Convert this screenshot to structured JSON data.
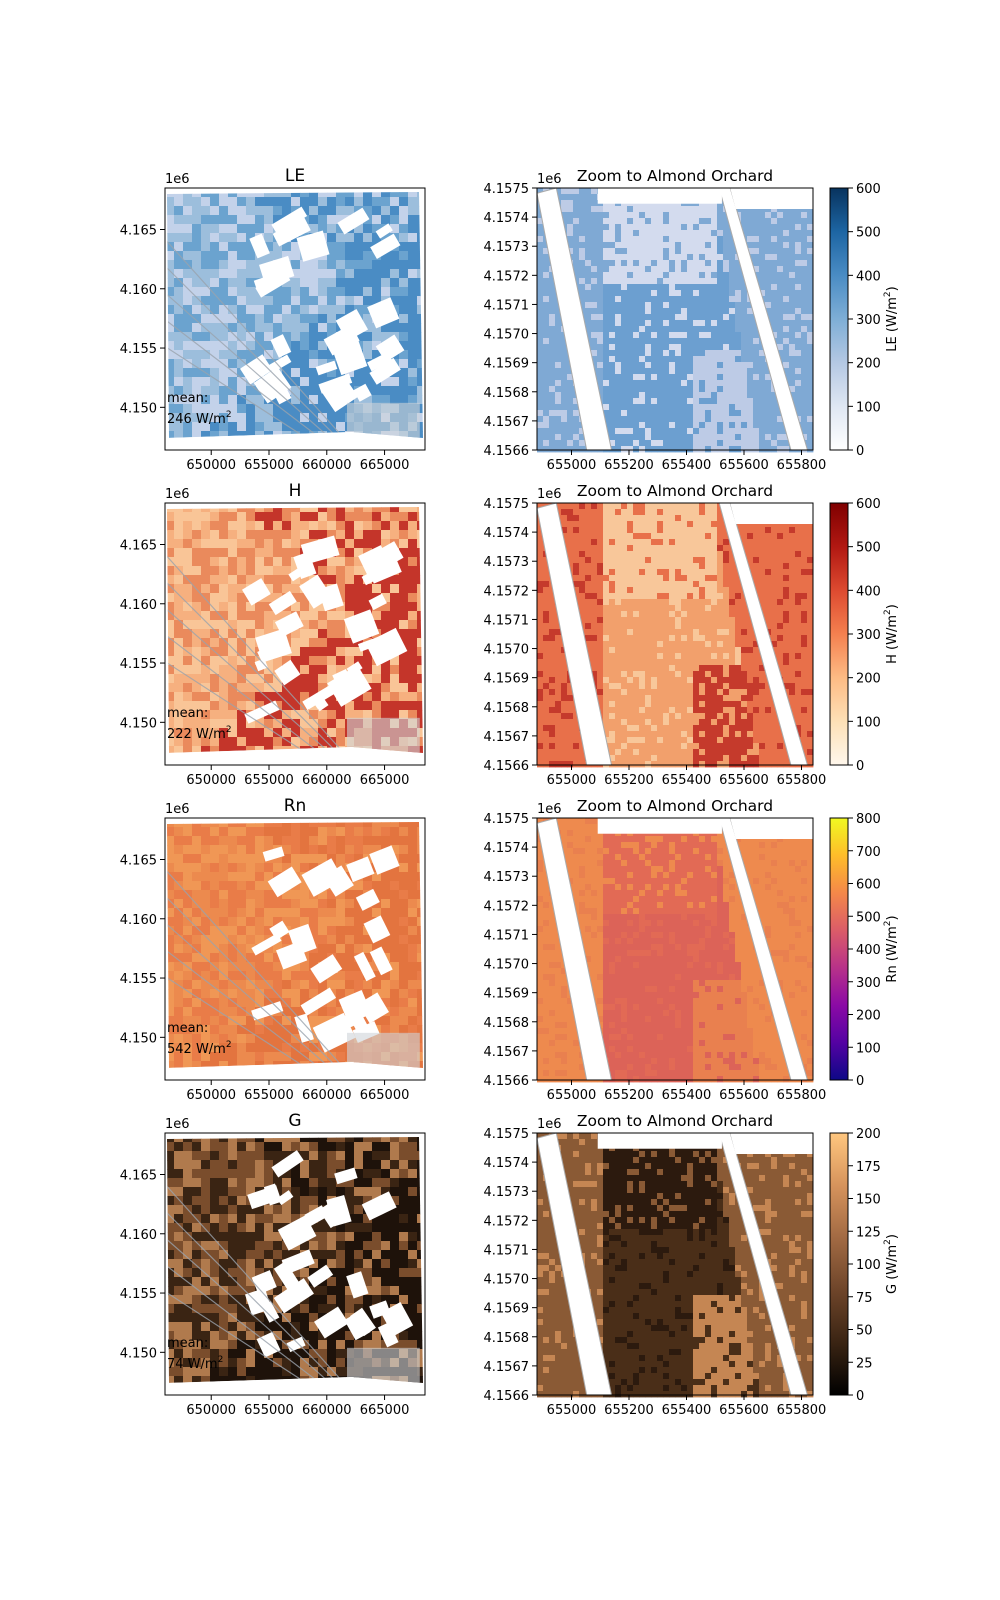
{
  "chart_data": [
    {
      "type": "heatmap",
      "title": "LE",
      "exponent_label": "1e6",
      "x_ticks": [
        "650000",
        "655000",
        "660000",
        "665000"
      ],
      "x_tick_values": [
        650000,
        655000,
        660000,
        665000
      ],
      "y_ticks": [
        "4.165",
        "4.160",
        "4.155",
        "4.150"
      ],
      "y_tick_values": [
        4.165,
        4.16,
        4.155,
        4.15
      ],
      "xlim": [
        646000,
        668500
      ],
      "ylim": [
        4.1464,
        4.1685
      ],
      "mean_label": "mean:",
      "mean_value": "246 W/m",
      "mean_superscript": "2",
      "palette": [
        "#c3d2ea",
        "#9cbedc",
        "#6ba3cf",
        "#4a8cc4"
      ]
    },
    {
      "type": "heatmap",
      "title": "Zoom to Almond Orchard",
      "exponent_label": "1e6",
      "x_ticks": [
        "655000",
        "655200",
        "655400",
        "655600",
        "655800"
      ],
      "x_tick_values": [
        655000,
        655200,
        655400,
        655600,
        655800
      ],
      "y_ticks": [
        "4.1575",
        "4.1574",
        "4.1573",
        "4.1572",
        "4.1571",
        "4.1570",
        "4.1569",
        "4.1568",
        "4.1567",
        "4.1566"
      ],
      "y_tick_values": [
        4.1575,
        4.1574,
        4.1573,
        4.1572,
        4.1571,
        4.157,
        4.1569,
        4.1568,
        4.1567,
        4.1566
      ],
      "xlim": [
        654880,
        655840
      ],
      "ylim": [
        4.1566,
        4.1575
      ],
      "colorbar": {
        "label": "LE (W/m",
        "label_superscript": "2",
        "ticks": [
          "0",
          "100",
          "200",
          "300",
          "400",
          "500",
          "600"
        ],
        "tick_values": [
          0,
          100,
          200,
          300,
          400,
          500,
          600
        ],
        "range": [
          0,
          600
        ],
        "colors": [
          "#ffffff",
          "#dfe7f3",
          "#b4c8e3",
          "#7eaed6",
          "#4a8cc4",
          "#1d65a3",
          "#08335e"
        ]
      },
      "palette": [
        "#d3dbee",
        "#7fa9d4",
        "#bdcbe6",
        "#6c9fd0"
      ]
    },
    {
      "type": "heatmap",
      "title": "H",
      "exponent_label": "1e6",
      "x_ticks": [
        "650000",
        "655000",
        "660000",
        "665000"
      ],
      "x_tick_values": [
        650000,
        655000,
        660000,
        665000
      ],
      "y_ticks": [
        "4.165",
        "4.160",
        "4.155",
        "4.150"
      ],
      "y_tick_values": [
        4.165,
        4.16,
        4.155,
        4.15
      ],
      "xlim": [
        646000,
        668500
      ],
      "ylim": [
        4.1464,
        4.1685
      ],
      "mean_label": "mean:",
      "mean_value": "222 W/m",
      "mean_superscript": "2",
      "palette": [
        "#f9c597",
        "#f6b07f",
        "#ea8a5c",
        "#c4352a"
      ]
    },
    {
      "type": "heatmap",
      "title": "Zoom to Almond Orchard",
      "exponent_label": "1e6",
      "x_ticks": [
        "655000",
        "655200",
        "655400",
        "655600",
        "655800"
      ],
      "x_tick_values": [
        655000,
        655200,
        655400,
        655600,
        655800
      ],
      "y_ticks": [
        "4.1575",
        "4.1574",
        "4.1573",
        "4.1572",
        "4.1571",
        "4.1570",
        "4.1569",
        "4.1568",
        "4.1567",
        "4.1566"
      ],
      "y_tick_values": [
        4.1575,
        4.1574,
        4.1573,
        4.1572,
        4.1571,
        4.157,
        4.1569,
        4.1568,
        4.1567,
        4.1566
      ],
      "xlim": [
        654880,
        655840
      ],
      "ylim": [
        4.1566,
        4.1575
      ],
      "colorbar": {
        "label": "H (W/m",
        "label_superscript": "2",
        "ticks": [
          "0",
          "100",
          "200",
          "300",
          "400",
          "500",
          "600"
        ],
        "tick_values": [
          0,
          100,
          200,
          300,
          400,
          500,
          600
        ],
        "range": [
          0,
          600
        ],
        "colors": [
          "#fff7ec",
          "#fde0b6",
          "#fdbb84",
          "#f4804f",
          "#dd4a30",
          "#b11812",
          "#7f0000"
        ]
      },
      "palette": [
        "#f8c79a",
        "#e8704a",
        "#c53a2c",
        "#f2a06c"
      ]
    },
    {
      "type": "heatmap",
      "title": "Rn",
      "exponent_label": "1e6",
      "x_ticks": [
        "650000",
        "655000",
        "660000",
        "665000"
      ],
      "x_tick_values": [
        650000,
        655000,
        660000,
        665000
      ],
      "y_ticks": [
        "4.165",
        "4.160",
        "4.155",
        "4.150"
      ],
      "y_tick_values": [
        4.165,
        4.16,
        4.155,
        4.15
      ],
      "xlim": [
        646000,
        668500
      ],
      "ylim": [
        4.1464,
        4.1685
      ],
      "mean_label": "mean:",
      "mean_value": "542 W/m",
      "mean_superscript": "2",
      "palette": [
        "#ec8a4e",
        "#e97c48",
        "#f09755",
        "#e3743f"
      ]
    },
    {
      "type": "heatmap",
      "title": "Zoom to Almond Orchard",
      "exponent_label": "1e6",
      "x_ticks": [
        "655000",
        "655200",
        "655400",
        "655600",
        "655800"
      ],
      "x_tick_values": [
        655000,
        655200,
        655400,
        655600,
        655800
      ],
      "y_ticks": [
        "4.1575",
        "4.1574",
        "4.1573",
        "4.1572",
        "4.1571",
        "4.1570",
        "4.1569",
        "4.1568",
        "4.1567",
        "4.1566"
      ],
      "y_tick_values": [
        4.1575,
        4.1574,
        4.1573,
        4.1572,
        4.1571,
        4.157,
        4.1569,
        4.1568,
        4.1567,
        4.1566
      ],
      "xlim": [
        654880,
        655840
      ],
      "ylim": [
        4.1566,
        4.1575
      ],
      "colorbar": {
        "label": "Rn (W/m",
        "label_superscript": "2",
        "ticks": [
          "0",
          "100",
          "200",
          "300",
          "400",
          "500",
          "600",
          "700",
          "800"
        ],
        "tick_values": [
          0,
          100,
          200,
          300,
          400,
          500,
          600,
          700,
          800
        ],
        "range": [
          0,
          800
        ],
        "colors": [
          "#0d0887",
          "#5402a3",
          "#8b0aa5",
          "#b83289",
          "#db5c68",
          "#f48849",
          "#febd2a",
          "#f0f921"
        ]
      },
      "palette": [
        "#e26a55",
        "#ee8a4e",
        "#e9804f",
        "#dc6358"
      ]
    },
    {
      "type": "heatmap",
      "title": "G",
      "exponent_label": "1e6",
      "x_ticks": [
        "650000",
        "655000",
        "660000",
        "665000"
      ],
      "x_tick_values": [
        650000,
        655000,
        660000,
        665000
      ],
      "y_ticks": [
        "4.165",
        "4.160",
        "4.155",
        "4.150"
      ],
      "y_tick_values": [
        4.165,
        4.16,
        4.155,
        4.15
      ],
      "xlim": [
        646000,
        668500
      ],
      "ylim": [
        4.1464,
        4.1685
      ],
      "mean_label": "mean:",
      "mean_value": "74 W/m",
      "mean_superscript": "2",
      "palette": [
        "#3a2413",
        "#7a4d2c",
        "#b07a4d",
        "#1e120a"
      ]
    },
    {
      "type": "heatmap",
      "title": "Zoom to Almond Orchard",
      "exponent_label": "1e6",
      "x_ticks": [
        "655000",
        "655200",
        "655400",
        "655600",
        "655800"
      ],
      "x_tick_values": [
        655000,
        655200,
        655400,
        655600,
        655800
      ],
      "y_ticks": [
        "4.1575",
        "4.1574",
        "4.1573",
        "4.1572",
        "4.1571",
        "4.1570",
        "4.1569",
        "4.1568",
        "4.1567",
        "4.1566"
      ],
      "y_tick_values": [
        4.1575,
        4.1574,
        4.1573,
        4.1572,
        4.1571,
        4.157,
        4.1569,
        4.1568,
        4.1567,
        4.1566
      ],
      "xlim": [
        654880,
        655840
      ],
      "ylim": [
        4.1566,
        4.1575
      ],
      "colorbar": {
        "label": "G (W/m",
        "label_superscript": "2",
        "ticks": [
          "0",
          "25",
          "50",
          "75",
          "100",
          "125",
          "150",
          "175",
          "200"
        ],
        "tick_values": [
          0,
          25,
          50,
          75,
          100,
          125,
          150,
          175,
          200
        ],
        "range": [
          0,
          200
        ],
        "colors": [
          "#000000",
          "#3a2413",
          "#6e452a",
          "#a26a43",
          "#d6935c",
          "#ffc77f"
        ]
      },
      "palette": [
        "#2c1a0e",
        "#8a5a35",
        "#c58653",
        "#4a2e18"
      ]
    }
  ]
}
